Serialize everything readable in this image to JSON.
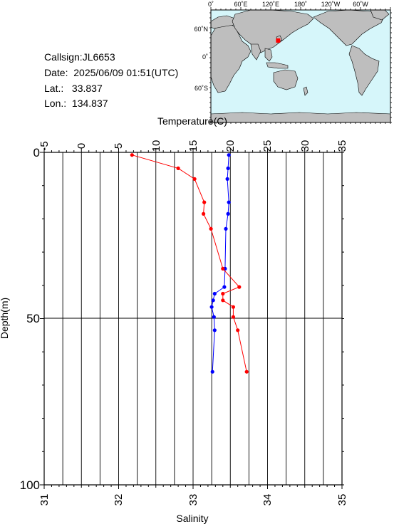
{
  "info": {
    "callsign": "Callsign:JL6653",
    "date": "Date:  2025/06/09 01:51(UTC)",
    "lat": "Lat.:   33.837",
    "lon": "Lon.:  134.837"
  },
  "map": {
    "top_labels": [
      "0˚",
      "60˚E",
      "120˚E",
      "180˚",
      "120˚W",
      "60˚W"
    ],
    "left_labels": [
      "60˚N",
      "0˚",
      "60˚S"
    ],
    "ocean_color": "#d6f6fa",
    "land_color": "#bebebe",
    "marker_color": "#ff0000",
    "marker": {
      "lon": 134.837,
      "lat": 33.837
    }
  },
  "chart_data": {
    "type": "line",
    "title": "",
    "temperature_axis": {
      "label": "Temperature(C)",
      "range": [
        -5,
        35
      ],
      "ticks": [
        "-5",
        "0",
        "5",
        "10",
        "15",
        "20",
        "25",
        "30",
        "35"
      ]
    },
    "salinity_axis": {
      "label": "Salinity",
      "range": [
        31,
        35
      ],
      "ticks": [
        "31",
        "32",
        "33",
        "34",
        "35"
      ]
    },
    "depth_axis": {
      "label": "Depth(m)",
      "range": [
        0,
        100
      ],
      "ticks": [
        "0",
        "50",
        "100"
      ],
      "inverted": true
    },
    "grid": true,
    "series": [
      {
        "variable": "temperature",
        "color": "#0000ff",
        "depth": [
          0.8,
          4.8,
          8.0,
          15.0,
          18.5,
          23.0,
          35.0,
          40.5,
          42.5,
          44.5,
          46.5,
          49.5,
          53.5,
          66.0
        ],
        "values": [
          19.8,
          19.7,
          19.6,
          19.8,
          19.7,
          19.4,
          19.3,
          19.2,
          17.9,
          17.7,
          17.5,
          17.8,
          17.9,
          17.6
        ]
      },
      {
        "variable": "salinity",
        "color": "#ff0000",
        "depth": [
          0.8,
          4.8,
          8.0,
          15.0,
          18.5,
          23.0,
          35.0,
          40.5,
          42.5,
          44.5,
          46.5,
          49.5,
          53.5,
          66.0
        ],
        "values": [
          32.18,
          32.8,
          33.02,
          33.15,
          33.14,
          33.24,
          33.4,
          33.62,
          33.4,
          33.4,
          33.54,
          33.54,
          33.6,
          33.72
        ]
      }
    ]
  }
}
